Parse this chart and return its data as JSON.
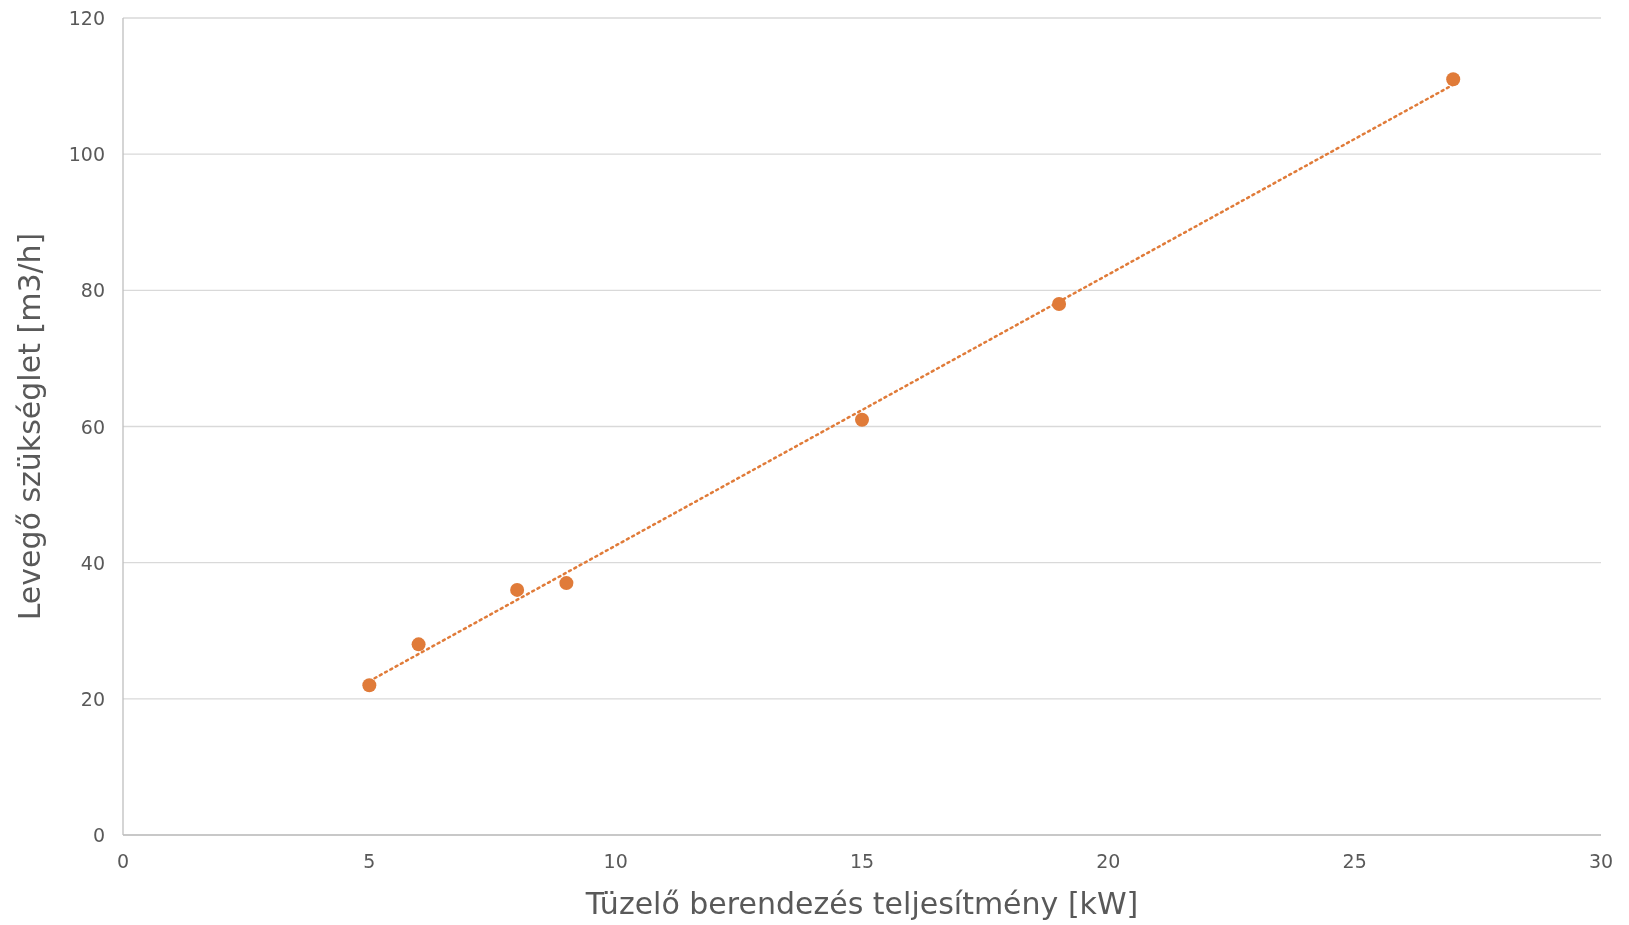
{
  "chart_data": {
    "type": "scatter",
    "xlabel": "Tüzelő berendezés teljesítmény [kW]",
    "ylabel": "Levegő szükséglet [m3/h]",
    "xlim": [
      0,
      30
    ],
    "xticks": [
      0,
      5,
      10,
      15,
      20,
      25,
      30
    ],
    "ylim": [
      0,
      120
    ],
    "yticks": [
      0,
      20,
      40,
      60,
      80,
      100,
      120
    ],
    "grid": "y",
    "series": [
      {
        "marker": "circle",
        "color": "#e07b39",
        "x": [
          5,
          6,
          8,
          9,
          15,
          19,
          27
        ],
        "values": [
          22,
          28,
          36,
          37,
          61,
          78,
          111
        ]
      },
      {
        "type": "line",
        "color": "#e07b39",
        "line_style": "dotted",
        "marker": "none",
        "x": [
          5,
          27
        ],
        "values": [
          22.6,
          110.2
        ]
      }
    ]
  }
}
